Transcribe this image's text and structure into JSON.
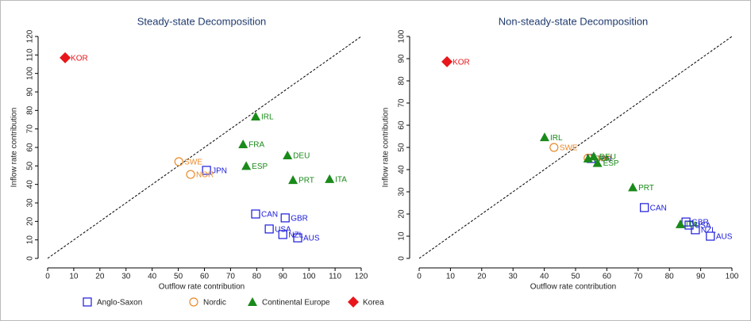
{
  "chart_data": [
    {
      "type": "scatter",
      "title": "Steady-state Decomposition",
      "xlabel": "Outflow rate contribution",
      "ylabel": "Inflow rate contribution",
      "xlim": [
        0,
        120
      ],
      "ylim": [
        0,
        120
      ],
      "xticks": [
        0,
        10,
        20,
        30,
        40,
        50,
        60,
        70,
        80,
        90,
        100,
        110,
        120
      ],
      "yticks": [
        0,
        10,
        20,
        30,
        40,
        50,
        60,
        70,
        80,
        90,
        100,
        110,
        120
      ],
      "grid": false,
      "series": [
        {
          "name": "Anglo-Saxon",
          "color": "#1a1adb",
          "marker": "square",
          "labels": [
            "JPN",
            "CAN",
            "GBR",
            "USA",
            "NZL",
            "AUS"
          ],
          "x": [
            60.8,
            79.6,
            90.9,
            84.8,
            90,
            95.7
          ],
          "values": [
            47.6,
            24,
            21.9,
            15.9,
            12.9,
            11.1
          ]
        },
        {
          "name": "Nordic",
          "color": "#e8892a",
          "marker": "circle",
          "labels": [
            "SWE",
            "NOR"
          ],
          "x": [
            50.2,
            54.7
          ],
          "values": [
            52.3,
            45.4
          ]
        },
        {
          "name": "Continental Europe",
          "color": "#1a8a1a",
          "marker": "triangle",
          "labels": [
            "IRL",
            "FRA",
            "ESP",
            "DEU",
            "PRT",
            "ITA"
          ],
          "x": [
            79.6,
            74.8,
            76,
            91.8,
            93.9,
            107.9
          ],
          "values": [
            76.7,
            61.7,
            50,
            55.7,
            42.4,
            42.9
          ]
        },
        {
          "name": "Korea",
          "color": "#e8161b",
          "marker": "diamond",
          "labels": [
            "KOR"
          ],
          "x": [
            6.7
          ],
          "values": [
            108.5
          ]
        }
      ]
    },
    {
      "type": "scatter",
      "title": "Non-steady-state Decomposition",
      "xlabel": "Outflow rate contribution",
      "ylabel": "Inflow rate contribution",
      "xlim": [
        0,
        100
      ],
      "ylim": [
        0,
        100
      ],
      "xticks": [
        0,
        10,
        20,
        30,
        40,
        50,
        60,
        70,
        80,
        90,
        100
      ],
      "yticks": [
        0,
        10,
        20,
        30,
        40,
        50,
        60,
        70,
        80,
        90,
        100
      ],
      "grid": false,
      "series": [
        {
          "color": "#1a1adb",
          "marker": "square",
          "labels": [
            "JPN",
            "CAN",
            "GBR",
            "USA",
            "NZL",
            "AUS"
          ],
          "x": [
            55,
            72,
            85.3,
            86.3,
            88.3,
            93.1
          ],
          "values": [
            45,
            22.9,
            16.4,
            15,
            12.9,
            10
          ]
        },
        {
          "color": "#e8892a",
          "marker": "circle",
          "labels": [
            "SWE",
            "NOR"
          ],
          "x": [
            43.1,
            54
          ],
          "values": [
            50,
            45.2
          ]
        },
        {
          "color": "#1a8a1a",
          "marker": "triangle",
          "labels": [
            "IRL",
            "FRA",
            "ESP",
            "DEU",
            "PRT",
            "ITA"
          ],
          "x": [
            40.1,
            54,
            57,
            55.8,
            68.3,
            83.5
          ],
          "values": [
            54.6,
            45,
            43,
            46,
            32,
            15.4
          ]
        },
        {
          "color": "#e8161b",
          "marker": "diamond",
          "labels": [
            "KOR"
          ],
          "x": [
            8.9
          ],
          "values": [
            88.6
          ]
        }
      ]
    }
  ]
}
